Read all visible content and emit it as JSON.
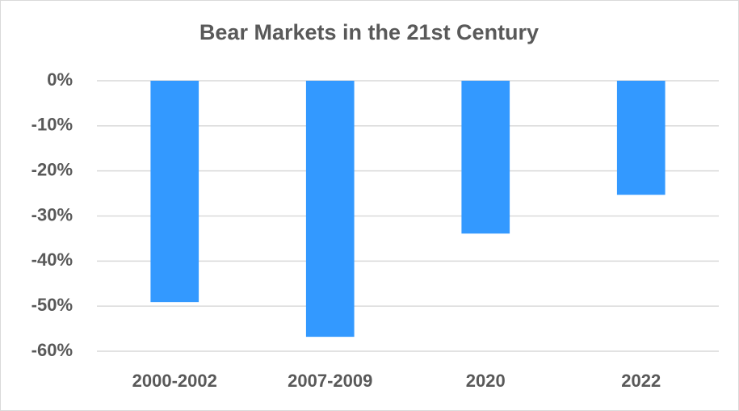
{
  "chart_data": {
    "type": "bar",
    "title": "Bear Markets in the 21st Century",
    "categories": [
      "2000-2002",
      "2007-2009",
      "2020",
      "2022"
    ],
    "values": [
      -49.1,
      -56.8,
      -33.9,
      -25.3
    ],
    "color": "#3399ff",
    "ylim": [
      -60,
      0
    ],
    "yticks": [
      {
        "value": 0,
        "label": "0%"
      },
      {
        "value": -10,
        "label": "-10%"
      },
      {
        "value": -20,
        "label": "-20%"
      },
      {
        "value": -30,
        "label": "-30%"
      },
      {
        "value": -40,
        "label": "-40%"
      },
      {
        "value": -50,
        "label": "-50%"
      },
      {
        "value": -60,
        "label": "-60%"
      }
    ],
    "grid": true
  }
}
